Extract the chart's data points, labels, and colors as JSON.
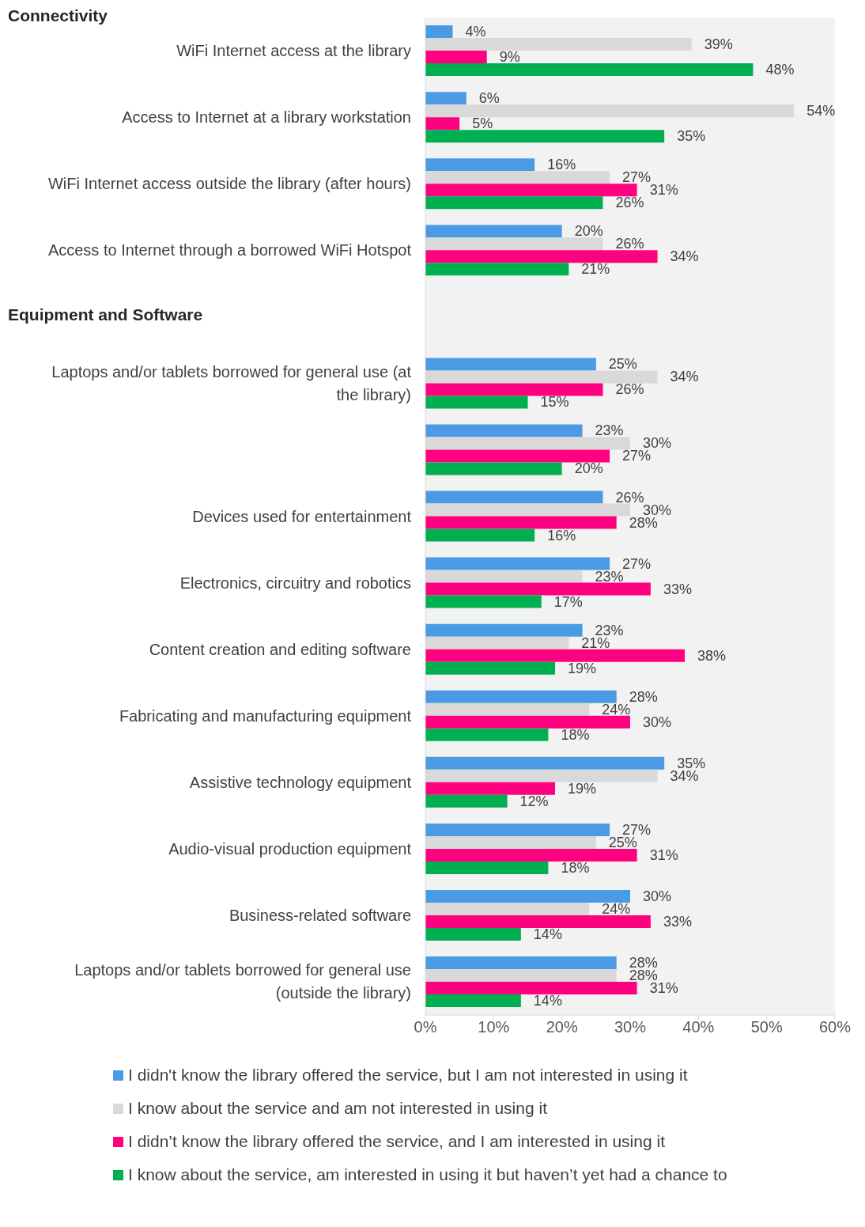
{
  "chart_data": {
    "type": "bar",
    "orientation": "horizontal",
    "categories": [
      "WiFi Internet access at the library",
      "Access to Internet at a library workstation",
      "WiFi Internet access outside the library (after hours)",
      "Access to Internet through a borrowed WiFi Hotspot",
      null,
      "Laptops and/or tablets borrowed for general use (at the library)",
      null,
      "Devices used for entertainment",
      "Electronics, circuitry and robotics",
      "Content creation and editing software",
      "Fabricating and manufacturing equipment",
      "Assistive technology equipment",
      "Audio-visual production equipment",
      "Business-related software",
      "Laptops and/or tablets borrowed for general use (outside the library)"
    ],
    "series": [
      {
        "name": "I didn't know the library offered the service, but I am not interested in using it",
        "color": "#4a9be3",
        "values": [
          4,
          6,
          16,
          20,
          null,
          25,
          23,
          26,
          27,
          23,
          28,
          35,
          27,
          30,
          28
        ],
        "value_labels": [
          "4%",
          "6%",
          "16%",
          "20%",
          null,
          "25%",
          "23%",
          "26%",
          "27%",
          "23%",
          "28%",
          "35%",
          "27%",
          "30%",
          "28%"
        ]
      },
      {
        "name": "I know about the service and am not interested in using it",
        "color": "#d9d9d9",
        "values": [
          39,
          54,
          27,
          26,
          null,
          34,
          30,
          30,
          23,
          21,
          24,
          34,
          25,
          24,
          28
        ],
        "value_labels": [
          "39%",
          "54%",
          "27%",
          "26%",
          null,
          "34%",
          "30%",
          "30%",
          "23%",
          "21%",
          "24%",
          "34%",
          "25%",
          "24%",
          "28%"
        ]
      },
      {
        "name": "I didn’t know the library offered the service, and I am interested in using it",
        "color": "#ff0080",
        "values": [
          9,
          5,
          31,
          34,
          null,
          26,
          27,
          28,
          33,
          38,
          30,
          19,
          31,
          33,
          31
        ],
        "value_labels": [
          "9%",
          "5%",
          "31%",
          "34%",
          null,
          "26%",
          "27%",
          "28%",
          "33%",
          "38%",
          "30%",
          "19%",
          "31%",
          "33%",
          "31%"
        ]
      },
      {
        "name": "I know about the service, am interested in using it but haven’t yet had a chance to",
        "color": "#00b050",
        "values": [
          48,
          35,
          26,
          21,
          null,
          15,
          20,
          16,
          17,
          19,
          18,
          12,
          18,
          14,
          14
        ],
        "value_labels": [
          "48%",
          "35%",
          "26%",
          "21%",
          null,
          "15%",
          "20%",
          "16%",
          "17%",
          "19%",
          "18%",
          "12%",
          "18%",
          "14%",
          "14%"
        ]
      }
    ],
    "xlim": [
      0,
      60
    ],
    "xticks": [
      {
        "value": 0,
        "label": "0%"
      },
      {
        "value": 10,
        "label": "10%"
      },
      {
        "value": 20,
        "label": "20%"
      },
      {
        "value": 30,
        "label": "30%"
      },
      {
        "value": 40,
        "label": "40%"
      },
      {
        "value": 50,
        "label": "50%"
      },
      {
        "value": 60,
        "label": "60%"
      }
    ],
    "annotations": [
      "Connectivity",
      "Equipment and Software"
    ],
    "legend": "bottom"
  }
}
